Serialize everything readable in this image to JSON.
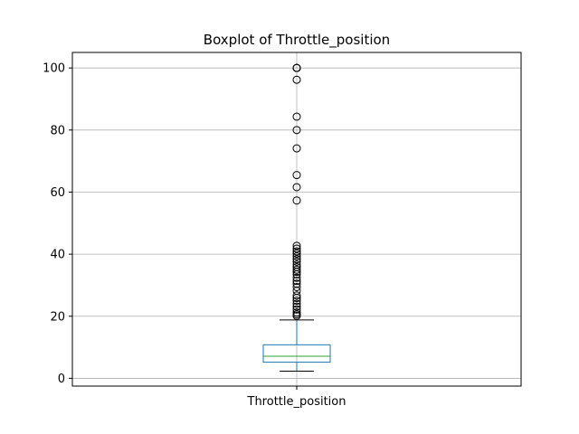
{
  "chart_data": {
    "type": "boxplot",
    "title": "Boxplot of Throttle_position",
    "xlabel": "",
    "ylabel": "",
    "categories": [
      "Throttle_position"
    ],
    "ylim": [
      -2.5,
      105
    ],
    "yticks": [
      0,
      20,
      40,
      60,
      80,
      100
    ],
    "grid": true,
    "colors": {
      "box": "#1f77b4",
      "median": "#2ca02c",
      "grid": "#b0b0b0",
      "whisker": "#000000"
    },
    "box": {
      "whisker_low": 2.3,
      "q1": 5.2,
      "median": 7.1,
      "q3": 10.8,
      "whisker_high": 18.8
    },
    "outliers": [
      100,
      100,
      100,
      96.2,
      84.3,
      80.0,
      74.1,
      65.5,
      61.6,
      57.3,
      42.7,
      41.8,
      40.9,
      40.2,
      39.3,
      38.4,
      37.6,
      36.6,
      35.8,
      35.0,
      34.3,
      33.5,
      32.4,
      31.4,
      30.5,
      29.4,
      28.2,
      26.7,
      25.9,
      25.0,
      24.0,
      23.1,
      22.2,
      21.2,
      20.6,
      20.1
    ]
  }
}
